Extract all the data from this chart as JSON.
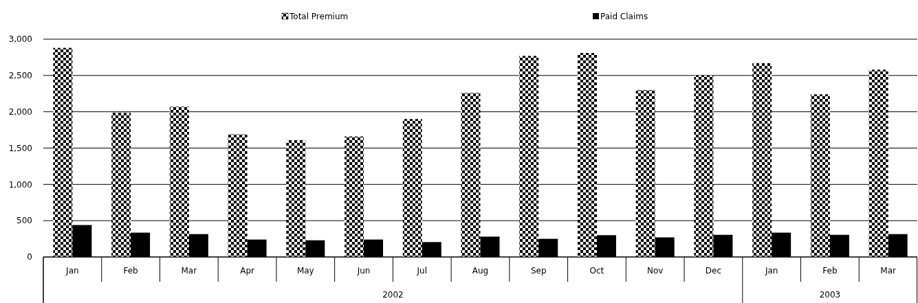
{
  "chart_data": {
    "type": "bar",
    "categories": [
      "Jan",
      "Feb",
      "Mar",
      "Apr",
      "May",
      "Jun",
      "Jul",
      "Aug",
      "Sep",
      "Oct",
      "Nov",
      "Dec",
      "Jan",
      "Feb",
      "Mar"
    ],
    "series": [
      {
        "name": "Total Premium",
        "color": "#000000",
        "values": [
          2880,
          1990,
          2070,
          1690,
          1610,
          1660,
          1900,
          2260,
          2770,
          2810,
          2300,
          2500,
          2670,
          2240,
          2580
        ]
      },
      {
        "name": "Paid Claims",
        "color": "#000000",
        "values": [
          440,
          335,
          315,
          240,
          230,
          240,
          205,
          280,
          250,
          300,
          270,
          305,
          335,
          305,
          315
        ]
      }
    ],
    "ylim": [
      0,
      3000
    ],
    "yticks": [
      {
        "value": 0,
        "label": "0"
      },
      {
        "value": 500,
        "label": "500"
      },
      {
        "value": 1000,
        "label": "1,000"
      },
      {
        "value": 1500,
        "label": "1,500"
      },
      {
        "value": 2000,
        "label": "2,000"
      },
      {
        "value": 2500,
        "label": "2,500"
      },
      {
        "value": 3000,
        "label": "3,000"
      }
    ],
    "grid": "y",
    "legend": "top",
    "annotations": [
      "2002",
      "2003"
    ]
  }
}
